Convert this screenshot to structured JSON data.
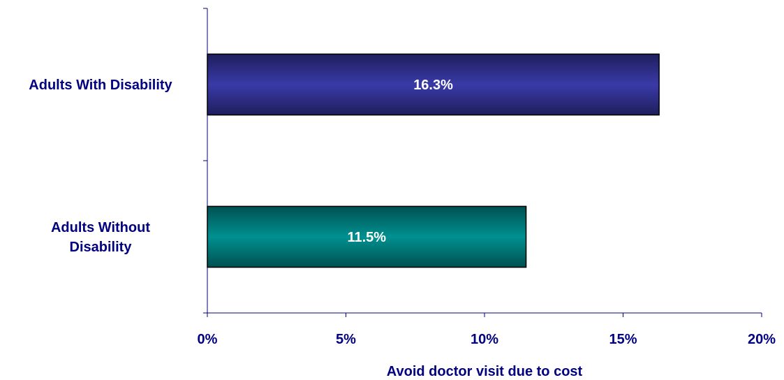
{
  "chart_data": {
    "type": "bar",
    "orientation": "horizontal",
    "categories": [
      [
        "Adults With Disability"
      ],
      [
        "Adults Without",
        "Disability"
      ]
    ],
    "values": [
      16.3,
      11.5
    ],
    "data_labels": [
      "16.3%",
      "11.5%"
    ],
    "bar_colors": [
      "#333399",
      "#008080"
    ],
    "xlabel": "Avoid doctor visit due to cost",
    "ylabel": "",
    "xlim": [
      0,
      20
    ],
    "xticks": [
      0,
      5,
      10,
      15,
      20
    ],
    "xtick_labels": [
      "0%",
      "5%",
      "10%",
      "15%",
      "20%"
    ],
    "grid": false,
    "legend": "none"
  }
}
